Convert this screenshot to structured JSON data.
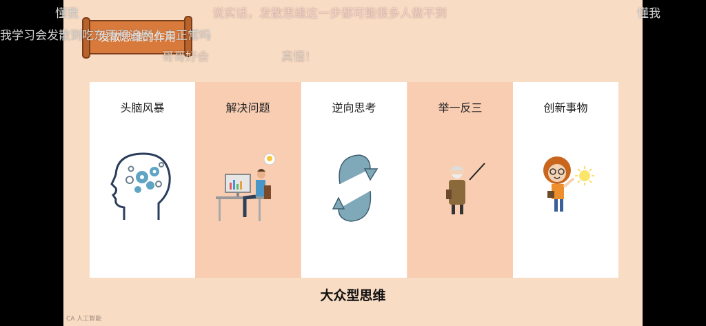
{
  "banner": {
    "label": "发散思维的作用"
  },
  "cards": [
    {
      "title": "头脑风暴",
      "icon": "brain-gears-icon",
      "bg": "#ffffff"
    },
    {
      "title": "解决问题",
      "icon": "office-worker-icon",
      "bg": "#f8cdb2"
    },
    {
      "title": "逆向思考",
      "icon": "cycle-arrows-icon",
      "bg": "#ffffff"
    },
    {
      "title": "举一反三",
      "icon": "teacher-icon",
      "bg": "#f8cdb2"
    },
    {
      "title": "创新事物",
      "icon": "idea-girl-icon",
      "bg": "#ffffff"
    }
  ],
  "bottom_title": "大众型思维",
  "danmaku": [
    {
      "text": "懂我",
      "color": "#d9d9d9"
    },
    {
      "text": "说实话，发散思维这一步都可能很多人做不到",
      "color": "#f6d2c9"
    },
    {
      "text": "懂我",
      "color": "#d9d9d9"
    },
    {
      "text": "我学习会发散到吃东西和追剧上去正常吗",
      "color": "#d6d6d6"
    },
    {
      "text": "哥哥好会",
      "color": "#e9d6c9"
    },
    {
      "text": "真懂！",
      "color": "#e9d6c9"
    }
  ],
  "footer_mark": "CA 人工智能",
  "colors": {
    "slide_bg": "#f9dcc4",
    "scroll_brown": "#d87a3c",
    "outside": "#000000"
  }
}
